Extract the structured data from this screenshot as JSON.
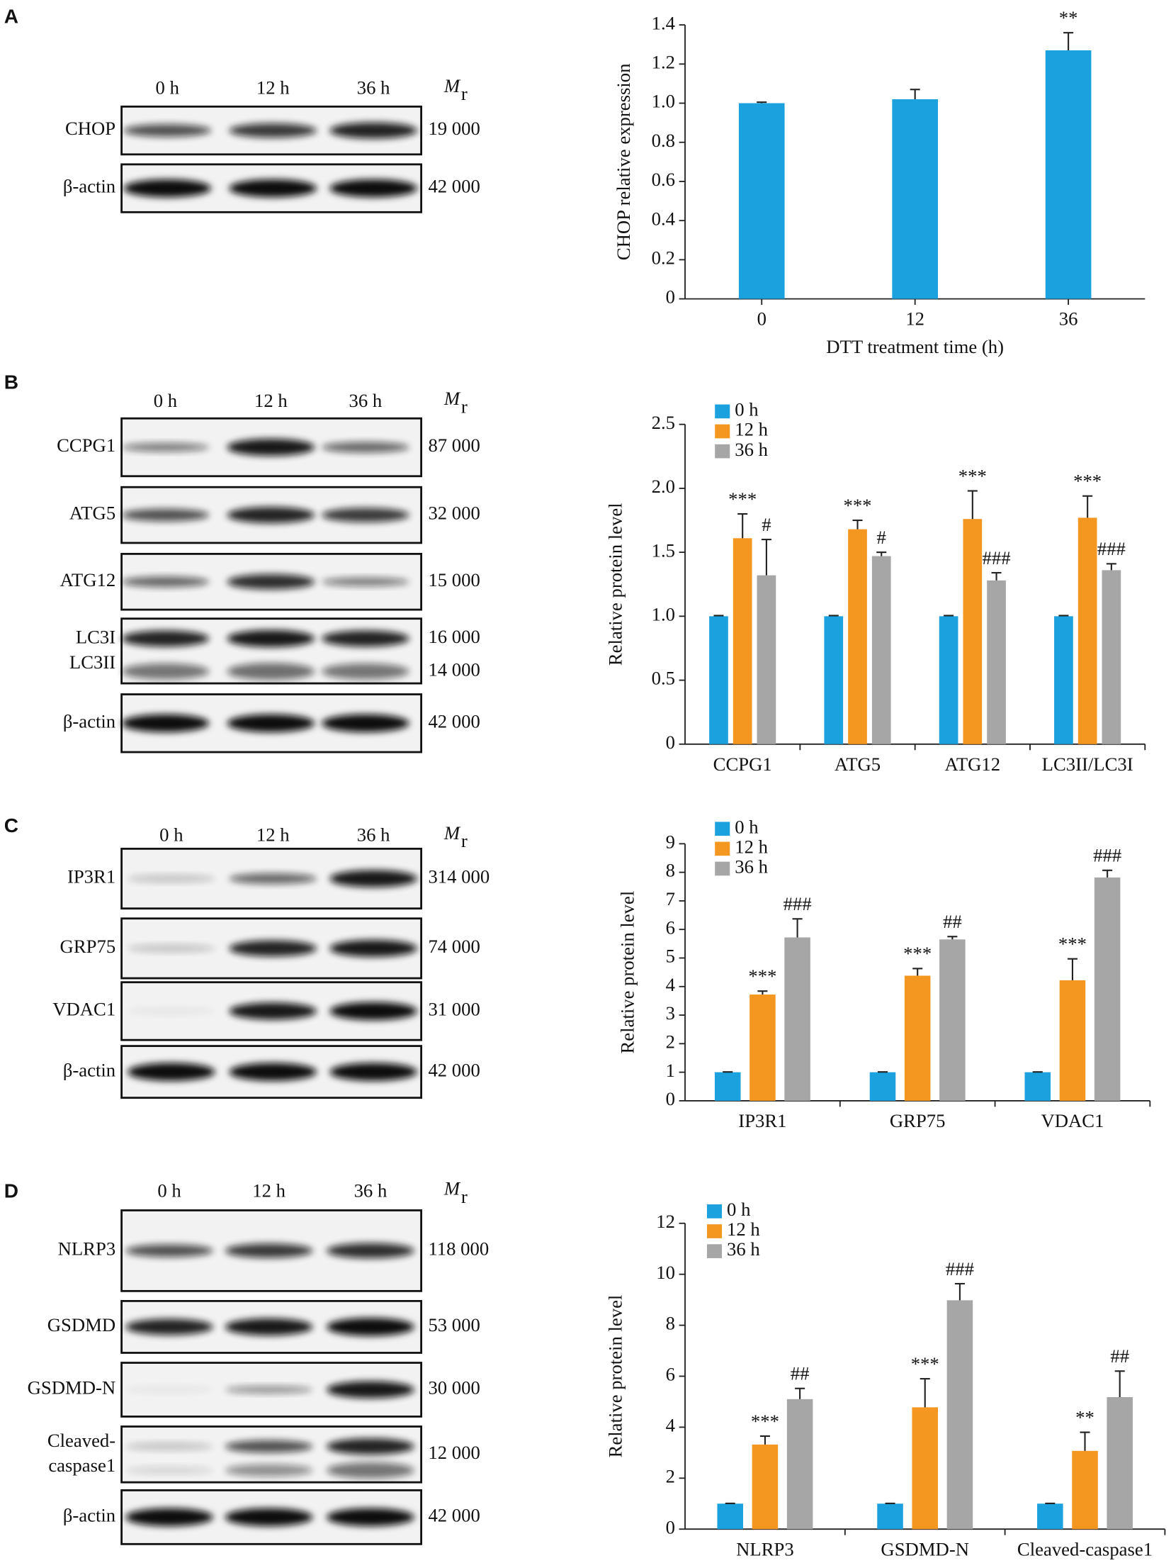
{
  "blots": [
    {
      "panel": "A",
      "lanes": [
        "0 h",
        "12 h",
        "36 h"
      ],
      "mr": "M",
      "mr_sub": "r",
      "rows": [
        {
          "labels": [
            "CHOP"
          ],
          "mw": [
            "19 000"
          ]
        },
        {
          "labels": [
            "β-actin"
          ],
          "mw": [
            "42 000"
          ]
        }
      ]
    },
    {
      "panel": "B",
      "lanes": [
        "0 h",
        "12 h",
        "36 h"
      ],
      "mr": "M",
      "mr_sub": "r",
      "rows": [
        {
          "labels": [
            "CCPG1"
          ],
          "mw": [
            "87 000"
          ]
        },
        {
          "labels": [
            "ATG5"
          ],
          "mw": [
            "32 000"
          ]
        },
        {
          "labels": [
            "ATG12"
          ],
          "mw": [
            "15 000"
          ]
        },
        {
          "labels": [
            "LC3I",
            "LC3II"
          ],
          "mw": [
            "16 000",
            "14 000"
          ]
        },
        {
          "labels": [
            "β-actin"
          ],
          "mw": [
            "42 000"
          ]
        }
      ]
    },
    {
      "panel": "C",
      "lanes": [
        "0 h",
        "12 h",
        "36 h"
      ],
      "mr": "M",
      "mr_sub": "r",
      "rows": [
        {
          "labels": [
            "IP3R1"
          ],
          "mw": [
            "314 000"
          ]
        },
        {
          "labels": [
            "GRP75"
          ],
          "mw": [
            "74 000"
          ]
        },
        {
          "labels": [
            "VDAC1"
          ],
          "mw": [
            "31 000"
          ]
        },
        {
          "labels": [
            "β-actin"
          ],
          "mw": [
            "42 000"
          ]
        }
      ]
    },
    {
      "panel": "D",
      "lanes": [
        "0 h",
        "12 h",
        "36 h"
      ],
      "mr": "M",
      "mr_sub": "r",
      "rows": [
        {
          "labels": [
            "NLRP3"
          ],
          "mw": [
            "118 000"
          ]
        },
        {
          "labels": [
            "GSDMD"
          ],
          "mw": [
            "53 000"
          ]
        },
        {
          "labels": [
            "GSDMD-N"
          ],
          "mw": [
            "30 000"
          ]
        },
        {
          "labels": [
            "Cleaved-",
            "caspase1"
          ],
          "mw": [
            "12 000"
          ]
        },
        {
          "labels": [
            "β-actin"
          ],
          "mw": [
            "42 000"
          ]
        }
      ]
    }
  ],
  "chart_data": [
    {
      "type": "bar",
      "ylabel": "CHOP relative expression",
      "xlabel": "DTT treatment time (h)",
      "categories": [
        "0",
        "12",
        "36"
      ],
      "values": [
        1.0,
        1.02,
        1.27
      ],
      "errors": [
        0.005,
        0.05,
        0.09
      ],
      "annotations": [
        null,
        null,
        "**"
      ],
      "color": "#1ba1dd",
      "ylim": [
        0,
        1.4
      ],
      "yticks": [
        0,
        0.2,
        0.4,
        0.6,
        0.8,
        {
          "value": 1,
          "label": "1.0"
        },
        1.2,
        1.4
      ]
    },
    {
      "type": "bar",
      "ylabel": "Relative protein level",
      "categories": [
        "CCPG1",
        "ATG5",
        "ATG12",
        "LC3II/LC3I"
      ],
      "legend": "upper left",
      "ylim": [
        0,
        2.5
      ],
      "yticks": [
        0,
        0.5,
        {
          "value": 1,
          "label": "1.0"
        },
        1.5,
        {
          "value": 2,
          "label": "2.0"
        },
        2.5
      ],
      "series": [
        {
          "name": "0 h",
          "color": "#1ba1dd",
          "values": [
            1,
            1,
            1,
            1
          ],
          "errors": [
            0.005,
            0.005,
            0.005,
            0.005
          ]
        },
        {
          "name": "12 h",
          "color": "#f39720",
          "values": [
            1.61,
            1.68,
            1.76,
            1.77
          ],
          "errors": [
            0.19,
            0.07,
            0.22,
            0.17
          ],
          "annotations": [
            "***",
            "***",
            "***",
            "***"
          ]
        },
        {
          "name": "36 h",
          "color": "#a6a6a6",
          "values": [
            1.32,
            1.47,
            1.28,
            1.36
          ],
          "errors": [
            0.28,
            0.03,
            0.06,
            0.05
          ],
          "annotations": [
            "#",
            "#",
            "###",
            "###"
          ]
        }
      ]
    },
    {
      "type": "bar",
      "ylabel": "Relative protein level",
      "categories": [
        "IP3R1",
        "GRP75",
        "VDAC1"
      ],
      "legend": "upper left",
      "ylim": [
        0,
        9
      ],
      "yticks": [
        0,
        1,
        2,
        3,
        4,
        5,
        6,
        7,
        8,
        9
      ],
      "series": [
        {
          "name": "0 h",
          "color": "#1ba1dd",
          "values": [
            1,
            1,
            1
          ],
          "errors": [
            0.01,
            0.01,
            0.01
          ]
        },
        {
          "name": "12 h",
          "color": "#f39720",
          "values": [
            3.72,
            4.38,
            4.22
          ],
          "errors": [
            0.12,
            0.25,
            0.75
          ],
          "annotations": [
            "***",
            "***",
            "***"
          ]
        },
        {
          "name": "36 h",
          "color": "#a6a6a6",
          "values": [
            5.72,
            5.65,
            7.82
          ],
          "errors": [
            0.65,
            0.1,
            0.25
          ],
          "annotations": [
            "###",
            "##",
            "###"
          ]
        }
      ]
    },
    {
      "type": "bar",
      "ylabel": "Relative protein level",
      "categories": [
        "NLRP3",
        "GSDMD-N",
        "Cleaved-caspase1"
      ],
      "legend": "upper left",
      "ylim": [
        0,
        12
      ],
      "yticks": [
        0,
        2,
        4,
        6,
        8,
        10,
        12
      ],
      "series": [
        {
          "name": "0 h",
          "color": "#1ba1dd",
          "values": [
            1,
            1,
            1
          ],
          "errors": [
            0.01,
            0.01,
            0.01
          ]
        },
        {
          "name": "12 h",
          "color": "#f39720",
          "values": [
            3.32,
            4.78,
            3.07
          ],
          "errors": [
            0.33,
            1.12,
            0.73
          ],
          "annotations": [
            "***",
            "***",
            "**"
          ]
        },
        {
          "name": "36 h",
          "color": "#a6a6a6",
          "values": [
            5.1,
            8.98,
            5.18
          ],
          "errors": [
            0.42,
            0.65,
            1.02
          ],
          "annotations": [
            "##",
            "###",
            "##"
          ]
        }
      ]
    }
  ]
}
